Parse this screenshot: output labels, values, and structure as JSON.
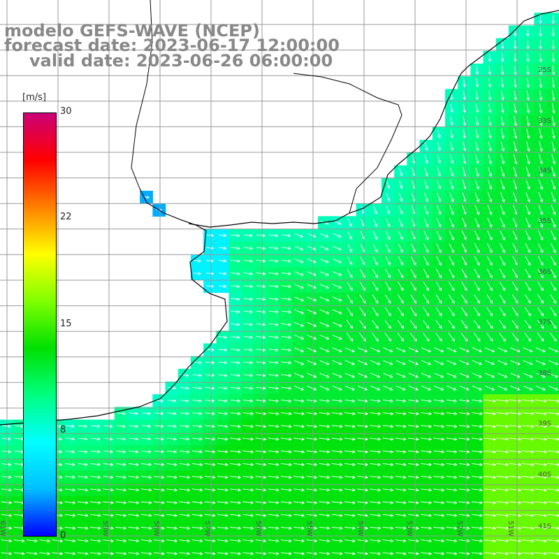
{
  "title": {
    "line1": "modelo GEFS-WAVE (NCEP)",
    "line2": "forecast date: 2023-06-17 12:00:00",
    "line3": "valid date: 2023-06-26 06:00:00"
  },
  "colorbar": {
    "unit": "[m/s]",
    "min": 0,
    "max": 30,
    "ticks": [
      "30",
      "22",
      "15",
      "8",
      "0"
    ],
    "colors": [
      "#0000ff",
      "#00bfff",
      "#00ffff",
      "#00ff80",
      "#00e000",
      "#80ff00",
      "#ffff00",
      "#ff8000",
      "#ff0000",
      "#cc0077"
    ]
  },
  "map": {
    "extent": {
      "lon": [
        -62,
        -50
      ],
      "lat": [
        -42,
        -25
      ]
    },
    "lat_labels": [
      "25S",
      "33S",
      "34S",
      "35S",
      "36S",
      "37S",
      "38S",
      "39S",
      "40S",
      "41S"
    ],
    "lon_labels": [
      "61W",
      "60W",
      "59W",
      "58W",
      "57W",
      "56W",
      "55W",
      "54W",
      "53W",
      "52W",
      "51W"
    ],
    "land_color": "#ffffff",
    "grid_color": "#999999",
    "coast_color": "#000000",
    "arrow_color": "#ffffff",
    "wind_direction": "from west-southwest, arrows pointing east-southeast",
    "speed_regions": [
      {
        "region": "Rio de la Plata estuary",
        "speed_ms": 3
      },
      {
        "region": "near Uruguay coast",
        "speed_ms": 6
      },
      {
        "region": "Buenos Aires coast",
        "speed_ms": 8
      },
      {
        "region": "open ocean 36-38S",
        "speed_ms": 12
      },
      {
        "region": "ocean 39-41S",
        "speed_ms": 13
      },
      {
        "region": "southeast corner",
        "speed_ms": 16
      }
    ]
  }
}
